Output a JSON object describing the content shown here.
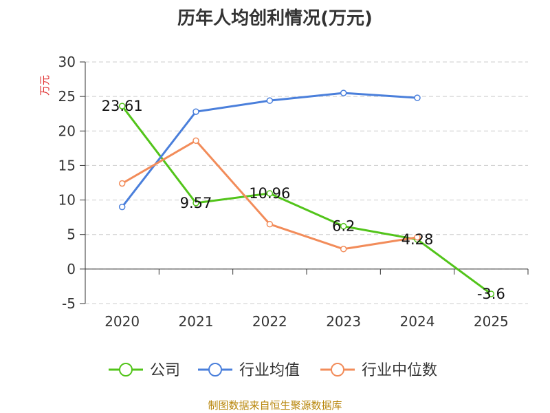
{
  "chart_data": {
    "type": "line",
    "title": "历年人均创利情况(万元)",
    "ylabel": "万元",
    "categories": [
      "2020",
      "2021",
      "2022",
      "2023",
      "2024",
      "2025"
    ],
    "ylim": [
      -5,
      30
    ],
    "yticks": [
      -5,
      0,
      5,
      10,
      15,
      20,
      25,
      30
    ],
    "grid": true,
    "legend_position": "bottom",
    "series": [
      {
        "name": "公司",
        "color": "#52c41a",
        "values": [
          23.61,
          9.57,
          10.96,
          6.2,
          4.28,
          -3.6
        ],
        "labels": [
          "23.61",
          "9.57",
          "10.96",
          "6.2",
          "4.28",
          "-3.6"
        ]
      },
      {
        "name": "行业均值",
        "color": "#4a7fdb",
        "values": [
          9.0,
          22.8,
          24.4,
          25.5,
          24.8,
          null
        ]
      },
      {
        "name": "行业中位数",
        "color": "#f28c5a",
        "values": [
          12.4,
          18.6,
          6.5,
          2.9,
          4.6,
          null
        ]
      }
    ]
  },
  "footer": {
    "source": "制图数据来自恒生聚源数据库"
  }
}
